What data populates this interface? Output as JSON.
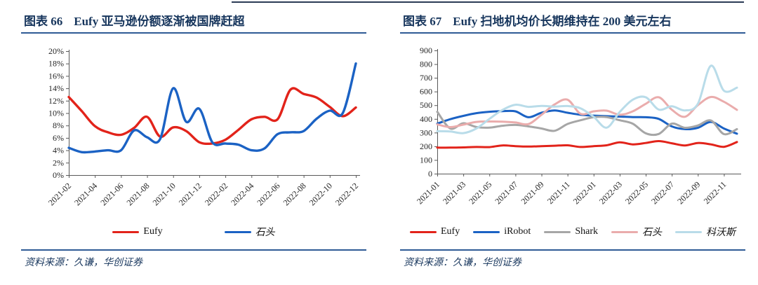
{
  "page": {
    "background": "#ffffff"
  },
  "figures": [
    {
      "label": "图表 66",
      "title": "Eufy 亚马逊份额逐渐被国牌赶超",
      "source": "资料来源：久谦，华创证券"
    },
    {
      "label": "图表 67",
      "title": "Eufy 扫地机均价长期维持在 200 美元左右",
      "source": "资料来源：久谦，华创证券"
    }
  ],
  "colors": {
    "title_navy": "#17365d",
    "rule_blue": "#2f5b95",
    "axis_gray": "#595959",
    "eufy_red": "#e2231a",
    "brand_blue": "#1b62c4",
    "shark_gray": "#a6a6a6",
    "roborock_pink": "#eaacac",
    "ecovacs_lightblue": "#b9dce9"
  },
  "chart_data": [
    {
      "type": "line",
      "title": "Eufy 亚马逊份额逐渐被国牌赶超",
      "xlabel": "",
      "ylabel": "",
      "ylim": [
        0,
        20
      ],
      "y_step": 2,
      "y_suffix": "%",
      "grid": false,
      "legend_position": "bottom",
      "x_tick_every": 2,
      "x": [
        "2021-02",
        "2021-03",
        "2021-04",
        "2021-05",
        "2021-06",
        "2021-07",
        "2021-08",
        "2021-09",
        "2021-10",
        "2021-11",
        "2021-12",
        "2022-01",
        "2022-02",
        "2022-03",
        "2022-04",
        "2022-05",
        "2022-06",
        "2022-07",
        "2022-08",
        "2022-09",
        "2022-10",
        "2022-11",
        "2022-12"
      ],
      "series": [
        {
          "name": "Eufy",
          "color": "#e2231a",
          "values": [
            12.6,
            10.3,
            7.9,
            6.9,
            6.5,
            7.6,
            9.4,
            6.2,
            7.7,
            7.1,
            5.3,
            5.1,
            5.7,
            7.3,
            9.0,
            9.4,
            9.0,
            13.8,
            13.1,
            12.5,
            11.0,
            9.5,
            10.9
          ]
        },
        {
          "name": "石头",
          "color": "#1b62c4",
          "values": [
            4.4,
            3.7,
            3.8,
            4.0,
            4.0,
            7.2,
            6.1,
            5.8,
            14.0,
            8.6,
            10.7,
            5.3,
            5.1,
            4.9,
            4.0,
            4.3,
            6.6,
            6.9,
            7.1,
            9.1,
            10.4,
            10.0,
            18.0
          ]
        }
      ]
    },
    {
      "type": "line",
      "title": "Eufy 扫地机均价长期维持在 200 美元左右",
      "xlabel": "",
      "ylabel": "",
      "ylim": [
        0,
        900
      ],
      "y_step": 100,
      "y_suffix": "",
      "grid": false,
      "legend_position": "bottom",
      "x_tick_every": 2,
      "x": [
        "2021-01",
        "2021-02",
        "2021-03",
        "2021-04",
        "2021-05",
        "2021-06",
        "2021-07",
        "2021-08",
        "2021-09",
        "2021-10",
        "2021-11",
        "2021-12",
        "2022-01",
        "2022-02",
        "2022-03",
        "2022-04",
        "2022-05",
        "2022-06",
        "2022-07",
        "2022-08",
        "2022-09",
        "2022-10",
        "2022-11",
        "2022-12"
      ],
      "series": [
        {
          "name": "Eufy",
          "color": "#e2231a",
          "values": [
            190,
            190,
            192,
            195,
            194,
            206,
            201,
            198,
            201,
            204,
            207,
            195,
            201,
            207,
            229,
            214,
            224,
            238,
            222,
            206,
            224,
            214,
            196,
            231
          ]
        },
        {
          "name": "iRobot",
          "color": "#1b62c4",
          "values": [
            365,
            398,
            422,
            442,
            452,
            456,
            455,
            412,
            445,
            462,
            445,
            430,
            424,
            420,
            417,
            413,
            412,
            400,
            345,
            325,
            335,
            378,
            330,
            292
          ]
        },
        {
          "name": "Shark",
          "color": "#a6a6a6",
          "values": [
            452,
            330,
            368,
            341,
            336,
            350,
            356,
            345,
            330,
            313,
            363,
            390,
            412,
            413,
            390,
            365,
            295,
            290,
            365,
            335,
            352,
            388,
            289,
            325
          ]
        },
        {
          "name": "石头",
          "color": "#eaacac",
          "values": [
            360,
            340,
            358,
            378,
            381,
            380,
            374,
            362,
            430,
            505,
            540,
            437,
            455,
            460,
            430,
            455,
            510,
            558,
            467,
            415,
            500,
            560,
            525,
            466
          ]
        },
        {
          "name": "科沃斯",
          "color": "#b9dce9",
          "values": [
            310,
            308,
            296,
            330,
            400,
            465,
            503,
            488,
            495,
            490,
            494,
            477,
            415,
            336,
            450,
            540,
            558,
            468,
            492,
            462,
            510,
            788,
            606,
            628
          ]
        }
      ]
    }
  ]
}
